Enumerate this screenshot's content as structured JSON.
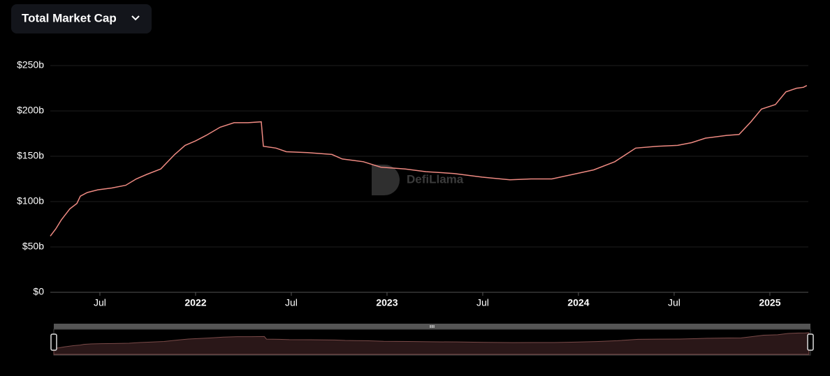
{
  "chart_data": {
    "type": "line",
    "title": "Total Market Cap",
    "watermark": "DefiLlama",
    "color": "#ef8a82",
    "x": [
      2021.241,
      2021.27,
      2021.299,
      2021.343,
      2021.38,
      2021.398,
      2021.434,
      2021.489,
      2021.562,
      2021.635,
      2021.69,
      2021.745,
      2021.818,
      2021.891,
      2021.945,
      2022.0,
      2022.055,
      2022.128,
      2022.201,
      2022.274,
      2022.343,
      2022.354,
      2022.42,
      2022.474,
      2022.584,
      2022.712,
      2022.766,
      2022.876,
      2022.967,
      2023.095,
      2023.204,
      2023.35,
      2023.496,
      2023.642,
      2023.752,
      2023.861,
      2023.971,
      2024.08,
      2024.19,
      2024.299,
      2024.409,
      2024.518,
      2024.591,
      2024.664,
      2024.774,
      2024.839,
      2024.901,
      2024.956,
      2025.029,
      2025.084,
      2025.139,
      2025.175,
      2025.193
    ],
    "values": [
      62,
      70,
      80,
      92,
      98,
      106,
      110,
      113,
      115,
      118,
      125,
      130,
      136,
      152,
      162,
      167,
      173,
      182,
      187,
      187,
      188,
      161,
      159,
      155,
      154,
      152,
      147,
      144,
      138,
      136,
      133,
      131,
      127,
      124,
      125,
      125,
      130,
      135,
      144,
      159,
      161,
      162,
      165,
      170,
      173,
      174,
      188,
      202,
      207,
      221,
      225,
      226,
      228
    ],
    "xlim": [
      2021.241,
      2025.201
    ],
    "xticks": [
      {
        "value": 2021.5,
        "label": "Jul"
      },
      2022,
      {
        "value": 2022.5,
        "label": "Jul"
      },
      2023,
      {
        "value": 2023.5,
        "label": "Jul"
      },
      2024,
      {
        "value": 2024.5,
        "label": "Jul"
      },
      2025
    ],
    "ylim": [
      0,
      250
    ],
    "yticks": [
      {
        "value": 0,
        "label": "$0"
      },
      {
        "value": 50,
        "label": "$50b"
      },
      {
        "value": 100,
        "label": "$100b"
      },
      {
        "value": 150,
        "label": "$150b"
      },
      {
        "value": 200,
        "label": "$200b"
      },
      {
        "value": 250,
        "label": "$250b"
      }
    ],
    "grid": true
  }
}
